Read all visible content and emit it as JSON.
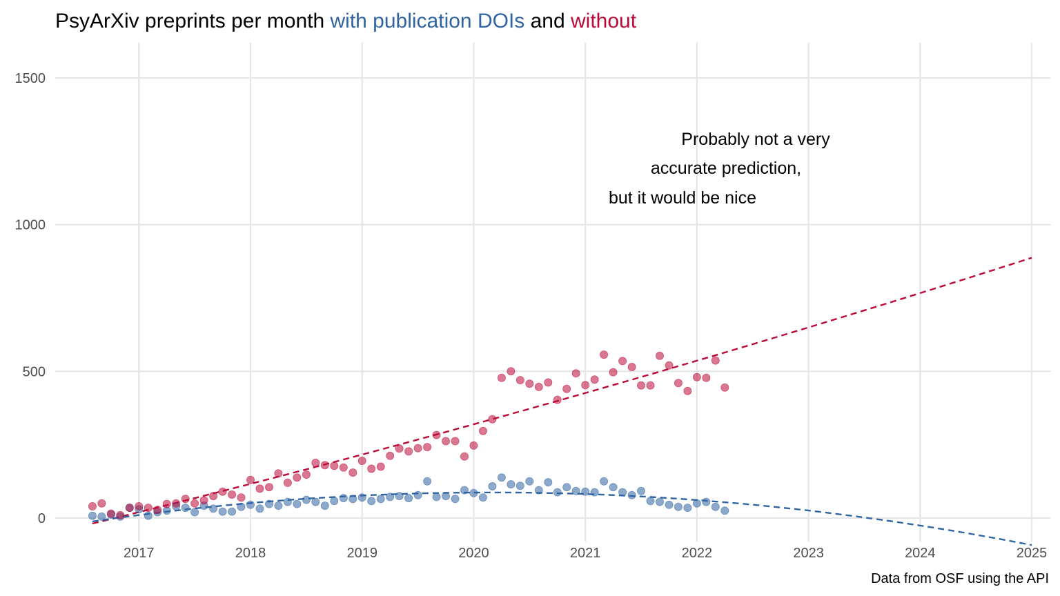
{
  "chart_data": {
    "type": "scatter",
    "title": {
      "part1": "PsyArXiv preprints per month ",
      "part2": "with publication DOIs",
      "part3": " and ",
      "part4": "without"
    },
    "caption": "Data from OSF using the API",
    "annotation": [
      "Probably not a very",
      "accurate prediction,",
      "but it would be nice"
    ],
    "xlabel": "",
    "ylabel": "",
    "x_ticks": [
      "2017",
      "2018",
      "2019",
      "2020",
      "2021",
      "2022",
      "2023",
      "2024",
      "2025"
    ],
    "y_ticks": [
      "0",
      "500",
      "1000",
      "1500"
    ],
    "xlim": [
      "2016-04",
      "2025-03"
    ],
    "ylim": [
      -80,
      1620
    ],
    "grid": true,
    "legend": "none",
    "colors": {
      "with_doi": "#2f64a3",
      "without_doi": "#bb0a37"
    },
    "x": [
      "2016-08",
      "2016-09",
      "2016-10",
      "2016-11",
      "2016-12",
      "2017-01",
      "2017-02",
      "2017-03",
      "2017-04",
      "2017-05",
      "2017-06",
      "2017-07",
      "2017-08",
      "2017-09",
      "2017-10",
      "2017-11",
      "2017-12",
      "2018-01",
      "2018-02",
      "2018-03",
      "2018-04",
      "2018-05",
      "2018-06",
      "2018-07",
      "2018-08",
      "2018-09",
      "2018-10",
      "2018-11",
      "2018-12",
      "2019-01",
      "2019-02",
      "2019-03",
      "2019-04",
      "2019-05",
      "2019-06",
      "2019-07",
      "2019-08",
      "2019-09",
      "2019-10",
      "2019-11",
      "2019-12",
      "2020-01",
      "2020-02",
      "2020-03",
      "2020-04",
      "2020-05",
      "2020-06",
      "2020-07",
      "2020-08",
      "2020-09",
      "2020-10",
      "2020-11",
      "2020-12",
      "2021-01",
      "2021-02",
      "2021-03",
      "2021-04",
      "2021-05",
      "2021-06",
      "2021-07",
      "2021-08",
      "2021-09",
      "2021-10",
      "2021-11",
      "2021-12",
      "2022-01",
      "2022-02",
      "2022-03",
      "2022-04"
    ],
    "series": [
      {
        "key": "with_doi",
        "values": [
          8,
          5,
          12,
          5,
          35,
          30,
          8,
          20,
          25,
          40,
          35,
          20,
          42,
          32,
          22,
          22,
          38,
          45,
          32,
          48,
          42,
          55,
          48,
          62,
          55,
          42,
          58,
          68,
          65,
          70,
          58,
          65,
          72,
          75,
          68,
          78,
          125,
          72,
          75,
          65,
          95,
          85,
          70,
          108,
          138,
          115,
          110,
          125,
          95,
          122,
          88,
          105,
          92,
          90,
          88,
          125,
          105,
          88,
          78,
          92,
          58,
          55,
          45,
          38,
          35,
          50,
          55,
          38,
          25
        ]
      },
      {
        "key": "without_doi",
        "values": [
          40,
          50,
          15,
          10,
          35,
          40,
          35,
          28,
          48,
          50,
          65,
          50,
          60,
          75,
          90,
          80,
          70,
          130,
          100,
          105,
          152,
          120,
          138,
          148,
          188,
          180,
          178,
          172,
          155,
          195,
          168,
          175,
          212,
          237,
          227,
          238,
          242,
          283,
          262,
          262,
          210,
          247,
          297,
          337,
          478,
          500,
          470,
          458,
          447,
          462,
          403,
          440,
          493,
          453,
          472,
          557,
          497,
          535,
          515,
          452,
          452,
          553,
          520,
          460,
          433,
          480,
          478,
          537,
          445
        ]
      }
    ],
    "trend_lines": [
      {
        "key": "without_doi",
        "from": "2016-08",
        "to": "2025-01",
        "style": "dashed"
      },
      {
        "key": "with_doi",
        "from": "2016-08",
        "to": "2025-01",
        "style": "dashed"
      }
    ]
  }
}
